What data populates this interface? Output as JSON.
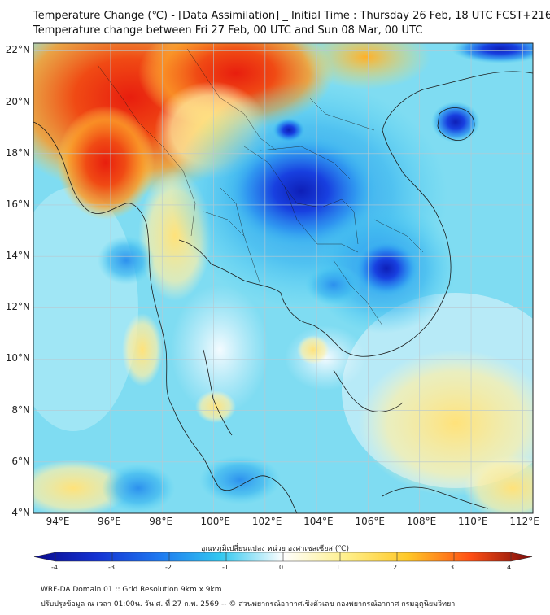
{
  "title": {
    "line1": "Temperature Change (℃) - [Data Assimilation] _ Initial Time : Thursday 26 Feb, 18 UTC FCST+216",
    "line2": "Temperature change between Fri 27 Feb, 00 UTC and Sun 08 Mar, 00 UTC"
  },
  "map": {
    "lat_labels": [
      "22°N",
      "20°N",
      "18°N",
      "16°N",
      "14°N",
      "12°N",
      "10°N",
      "8°N",
      "6°N",
      "4°N"
    ],
    "lon_labels": [
      "94°E",
      "96°E",
      "98°E",
      "100°E",
      "102°E",
      "104°E",
      "106°E",
      "108°E",
      "110°E",
      "112°E"
    ],
    "lat_range": [
      4,
      22.3
    ],
    "lon_range": [
      93,
      112.4
    ]
  },
  "colorbar": {
    "title": "อุณหภูมิเปลี่ยนแปลง หน่วย องศาเซลเซียส (℃)",
    "ticks": [
      "-4",
      "-3",
      "-2",
      "-1",
      "0",
      "1",
      "2",
      "3",
      "4"
    ],
    "range": [
      -4,
      4
    ],
    "colors": {
      "neg4": "#0a0a8c",
      "neg3": "#1432d2",
      "neg2": "#1e78f0",
      "neg1": "#32c8f0",
      "zero": "#ffffff",
      "pos1": "#fff08c",
      "pos2": "#ffc828",
      "pos3": "#ff5014",
      "pos4": "#7a0a0a"
    }
  },
  "footer": {
    "line1": "WRF-DA Domain 01 :: Grid Resolution 9km x 9km",
    "line2": "ปรับปรุงข้อมูล ณ เวลา 01:00น. วัน ศ. ที่ 27 ก.พ. 2569 -- © ส่วนพยากรณ์อากาศเชิงตัวเลข กองพยากรณ์อากาศ กรมอุตุนิยมวิทยา"
  }
}
